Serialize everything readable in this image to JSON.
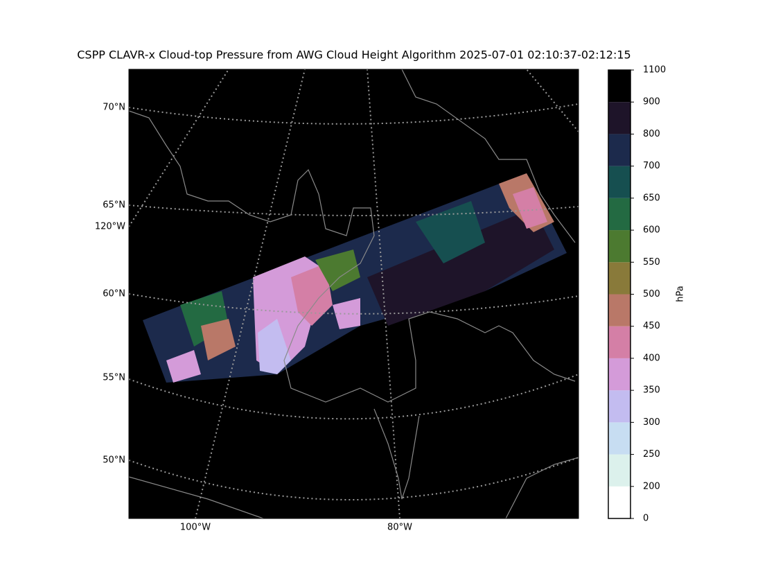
{
  "title": "CSPP CLAVR-x Cloud-top Pressure from AWG Cloud Height Algorithm 2025-07-01 02:10:37-02:12:15",
  "map": {
    "lat_labels": [
      "70°N",
      "65°N",
      "60°N",
      "55°N",
      "50°N"
    ],
    "lon_labels": [
      "120°W",
      "100°W",
      "80°W"
    ]
  },
  "colorbar": {
    "label": "hPa",
    "ticks": [
      0,
      200,
      250,
      300,
      350,
      400,
      450,
      500,
      550,
      600,
      650,
      700,
      800,
      900,
      1100
    ],
    "colors": [
      "#ffffff",
      "#dcf1ec",
      "#c7ddf2",
      "#c3bcf0",
      "#d49bd9",
      "#d47fa6",
      "#b97868",
      "#897a3a",
      "#4c7a30",
      "#236a42",
      "#164f50",
      "#1c2a4c",
      "#1e1429",
      "#000000"
    ]
  }
}
